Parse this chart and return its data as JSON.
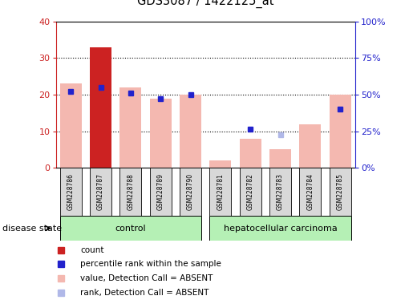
{
  "title": "GDS3087 / 1422125_at",
  "samples": [
    "GSM228786",
    "GSM228787",
    "GSM228788",
    "GSM228789",
    "GSM228790",
    "GSM228781",
    "GSM228782",
    "GSM228783",
    "GSM228784",
    "GSM228785"
  ],
  "groups": [
    "control",
    "control",
    "control",
    "control",
    "control",
    "hepatocellular carcinoma",
    "hepatocellular carcinoma",
    "hepatocellular carcinoma",
    "hepatocellular carcinoma",
    "hepatocellular carcinoma"
  ],
  "bar_values": [
    23,
    33,
    22,
    19,
    20,
    2,
    8,
    5,
    12,
    20
  ],
  "bar_absent": [
    true,
    false,
    true,
    true,
    true,
    true,
    true,
    true,
    true,
    true
  ],
  "rank_values": [
    21,
    22,
    20.5,
    19,
    20,
    null,
    10.5,
    9,
    null,
    16
  ],
  "rank_absent": [
    false,
    false,
    false,
    false,
    false,
    true,
    false,
    true,
    true,
    false
  ],
  "left_ylim": [
    0,
    40
  ],
  "right_ylim": [
    0,
    100
  ],
  "left_yticks": [
    0,
    10,
    20,
    30,
    40
  ],
  "right_yticks": [
    0,
    25,
    50,
    75,
    100
  ],
  "right_yticklabels": [
    "0%",
    "25%",
    "50%",
    "75%",
    "100%"
  ],
  "bar_color_present": "#cc2222",
  "bar_color_absent": "#f4b8b0",
  "rank_color_present": "#2222cc",
  "rank_color_absent": "#b0b8e8",
  "control_fill": "#b5f0b5",
  "cancer_fill": "#b5f0b5",
  "sample_box_fill": "#d8d8d8",
  "left_axis_color": "#cc2222",
  "right_axis_color": "#2222cc",
  "background_color": "#ffffff",
  "grid_color": "#000000",
  "legend_items": [
    "count",
    "percentile rank within the sample",
    "value, Detection Call = ABSENT",
    "rank, Detection Call = ABSENT"
  ],
  "legend_colors": [
    "#cc2222",
    "#2222cc",
    "#f4b8b0",
    "#b0b8e8"
  ]
}
